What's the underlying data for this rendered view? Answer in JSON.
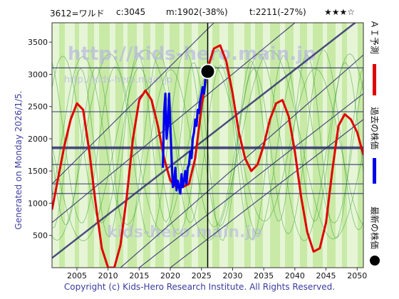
{
  "header": {
    "ticker": "3612=ワルド",
    "current": "c:3045",
    "min": "m:1902(-38%)",
    "target": "t:2211(-27%)",
    "stars": "★★★☆"
  },
  "side_label": "Generated on Monday 2026/1/5.",
  "footer": "Copyright (c) Kids-Hero Research Institute. All Rights Reserved.",
  "watermark": {
    "top_line1": "http://kids-hero.main.jp",
    "top_line2": "http://kids-hero.main.jp",
    "bottom_line": "kids-hero.main.jp"
  },
  "legend": {
    "ai_forecast": "ＡＩ予測",
    "past_price": "過去の株価",
    "latest_price": "最新の株価"
  },
  "colors": {
    "ai_forecast": "#e00000",
    "past_price": "#0000ee",
    "latest_price": "#000000",
    "band_light": "#e6f5d6",
    "band_mid": "#c8eaa6",
    "band_dark": "#a8dd84",
    "band_yellow": "#f4f6c4",
    "green_line": "#2e9a20",
    "guide_line": "#303070"
  },
  "chart_data": {
    "type": "line",
    "xlim": [
      2001,
      2051
    ],
    "ylim": [
      0,
      3800
    ],
    "x_ticks": [
      2005,
      2010,
      2015,
      2020,
      2025,
      2030,
      2035,
      2040,
      2045,
      2050
    ],
    "y_ticks": [
      500,
      1000,
      1500,
      2000,
      2500,
      3000,
      3500
    ],
    "horizontal_levels": [
      3100,
      2420,
      1870,
      1850,
      1600,
      1300,
      1150
    ],
    "vertical_marker_x": 2026.0,
    "series": [
      {
        "name": "ＡＩ予測",
        "x": [
          2001,
          2002,
          2003,
          2004,
          2005,
          2006,
          2007,
          2008,
          2009,
          2010,
          2011,
          2012,
          2013,
          2014,
          2015,
          2016,
          2017,
          2018,
          2019,
          2020,
          2021,
          2022,
          2023,
          2024,
          2025,
          2026,
          2027,
          2028,
          2029,
          2030,
          2031,
          2032,
          2033,
          2034,
          2035,
          2036,
          2037,
          2038,
          2039,
          2040,
          2041,
          2042,
          2043,
          2044,
          2045,
          2046,
          2047,
          2048,
          2049,
          2050,
          2051
        ],
        "y": [
          900,
          1400,
          1900,
          2300,
          2550,
          2450,
          1800,
          1000,
          300,
          0,
          0,
          350,
          1100,
          2000,
          2600,
          2750,
          2600,
          2200,
          1700,
          1350,
          1250,
          1250,
          1300,
          1700,
          2500,
          3100,
          3400,
          3450,
          3200,
          2700,
          2100,
          1700,
          1500,
          1600,
          1900,
          2300,
          2550,
          2600,
          2350,
          1800,
          1100,
          550,
          250,
          300,
          700,
          1500,
          2200,
          2380,
          2300,
          2100,
          1750
        ]
      },
      {
        "name": "過去の株価",
        "x": [
          2018.8,
          2019.0,
          2019.2,
          2019.4,
          2019.6,
          2019.8,
          2020.0,
          2020.2,
          2020.4,
          2020.6,
          2020.8,
          2021.0,
          2021.2,
          2021.4,
          2021.6,
          2021.8,
          2022.0,
          2022.2,
          2022.4,
          2022.6,
          2022.8,
          2023.0,
          2023.2,
          2023.4,
          2023.6,
          2023.8,
          2024.0,
          2024.2,
          2024.4,
          2024.6,
          2024.8,
          2025.0,
          2025.2,
          2025.4,
          2025.6,
          2025.8,
          2026.0
        ],
        "y": [
          1550,
          2400,
          2700,
          2000,
          2200,
          2700,
          2200,
          1700,
          1250,
          1300,
          1550,
          1200,
          1350,
          1250,
          1150,
          1450,
          1250,
          1350,
          1500,
          1300,
          1550,
          1600,
          1800,
          1700,
          2000,
          2100,
          2300,
          2200,
          2450,
          2400,
          2600,
          2700,
          2800,
          2700,
          2900,
          3000,
          3045
        ]
      }
    ],
    "latest_point": {
      "x": 2026.0,
      "y": 3045
    }
  }
}
